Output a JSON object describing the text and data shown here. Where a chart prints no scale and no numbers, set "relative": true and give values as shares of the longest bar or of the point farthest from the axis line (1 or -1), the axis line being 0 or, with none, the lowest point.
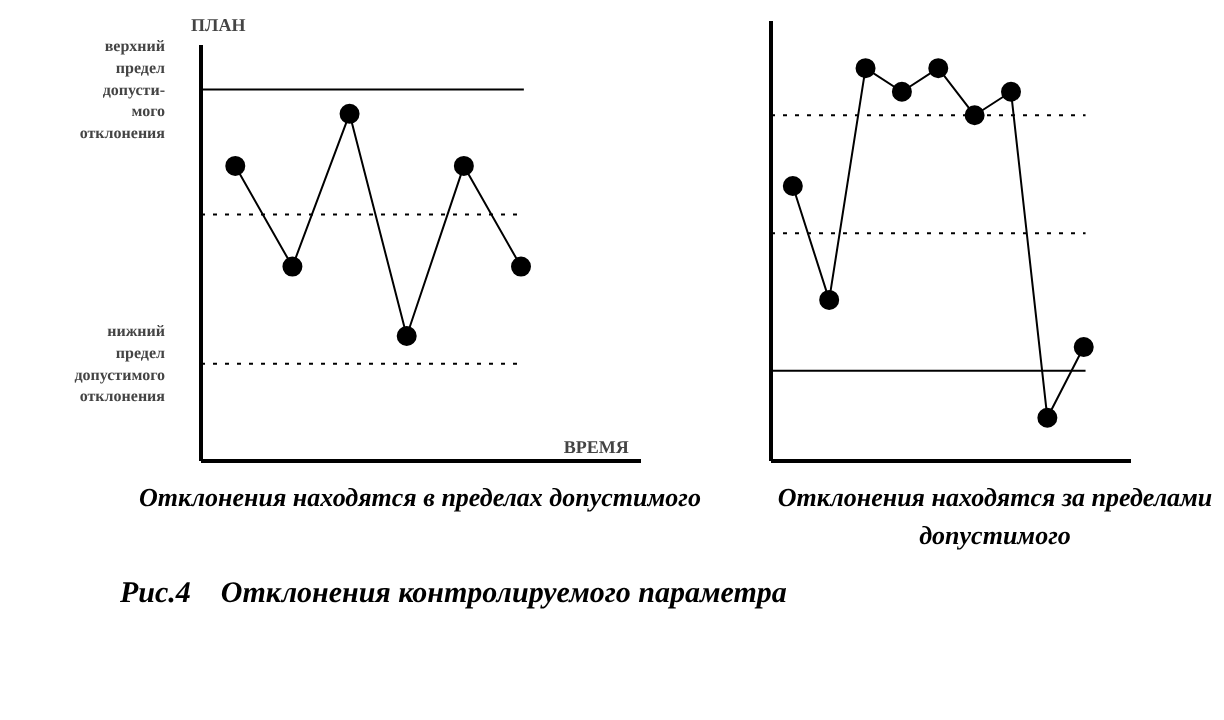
{
  "chart_data": [
    {
      "type": "line",
      "relative": true,
      "title": "Отклонения находятся в пределах допустимого",
      "xlabel": "ВРЕМЯ",
      "ylabel": "ПЛАН",
      "categories": [
        null,
        null,
        null,
        null,
        null,
        null
      ],
      "series": [
        {
          "color": "#000000",
          "values": [
            0.85,
            0.56,
            1,
            0.36,
            0.85,
            0.56
          ]
        }
      ],
      "ref_lines": [
        {
          "axis": "y",
          "value": 1.07,
          "label": "верхний\nпредел\nдопусти-\nмого\nотклонения",
          "line_style": "solid",
          "color": "#000000"
        },
        {
          "axis": "y",
          "value": 0.71,
          "line_style": "dotted",
          "color": "#000000"
        },
        {
          "axis": "y",
          "value": 0.28,
          "label": "нижний\nпредел\nдопустимого\nотклонения",
          "line_style": "dotted",
          "color": "#000000"
        }
      ],
      "marker": "circle",
      "line_style": "solid",
      "grid": false,
      "annotations": [
        "Рис.4    Отклонения контролируемого параметра"
      ]
    },
    {
      "type": "line",
      "relative": true,
      "title": "Отклонения находятся за пределами допустимого",
      "categories": [
        null,
        null,
        null,
        null,
        null,
        null,
        null,
        null,
        null
      ],
      "series": [
        {
          "color": "#000000",
          "values": [
            0.7,
            0.41,
            1,
            0.94,
            1,
            0.88,
            0.94,
            0.11,
            0.29
          ]
        }
      ],
      "ref_lines": [
        {
          "axis": "y",
          "value": 0.88,
          "line_style": "dotted",
          "color": "#000000"
        },
        {
          "axis": "y",
          "value": 0.58,
          "line_style": "dotted",
          "color": "#000000"
        },
        {
          "axis": "y",
          "value": 0.23,
          "line_style": "solid",
          "color": "#000000"
        }
      ],
      "marker": "circle",
      "line_style": "solid",
      "grid": false
    }
  ]
}
